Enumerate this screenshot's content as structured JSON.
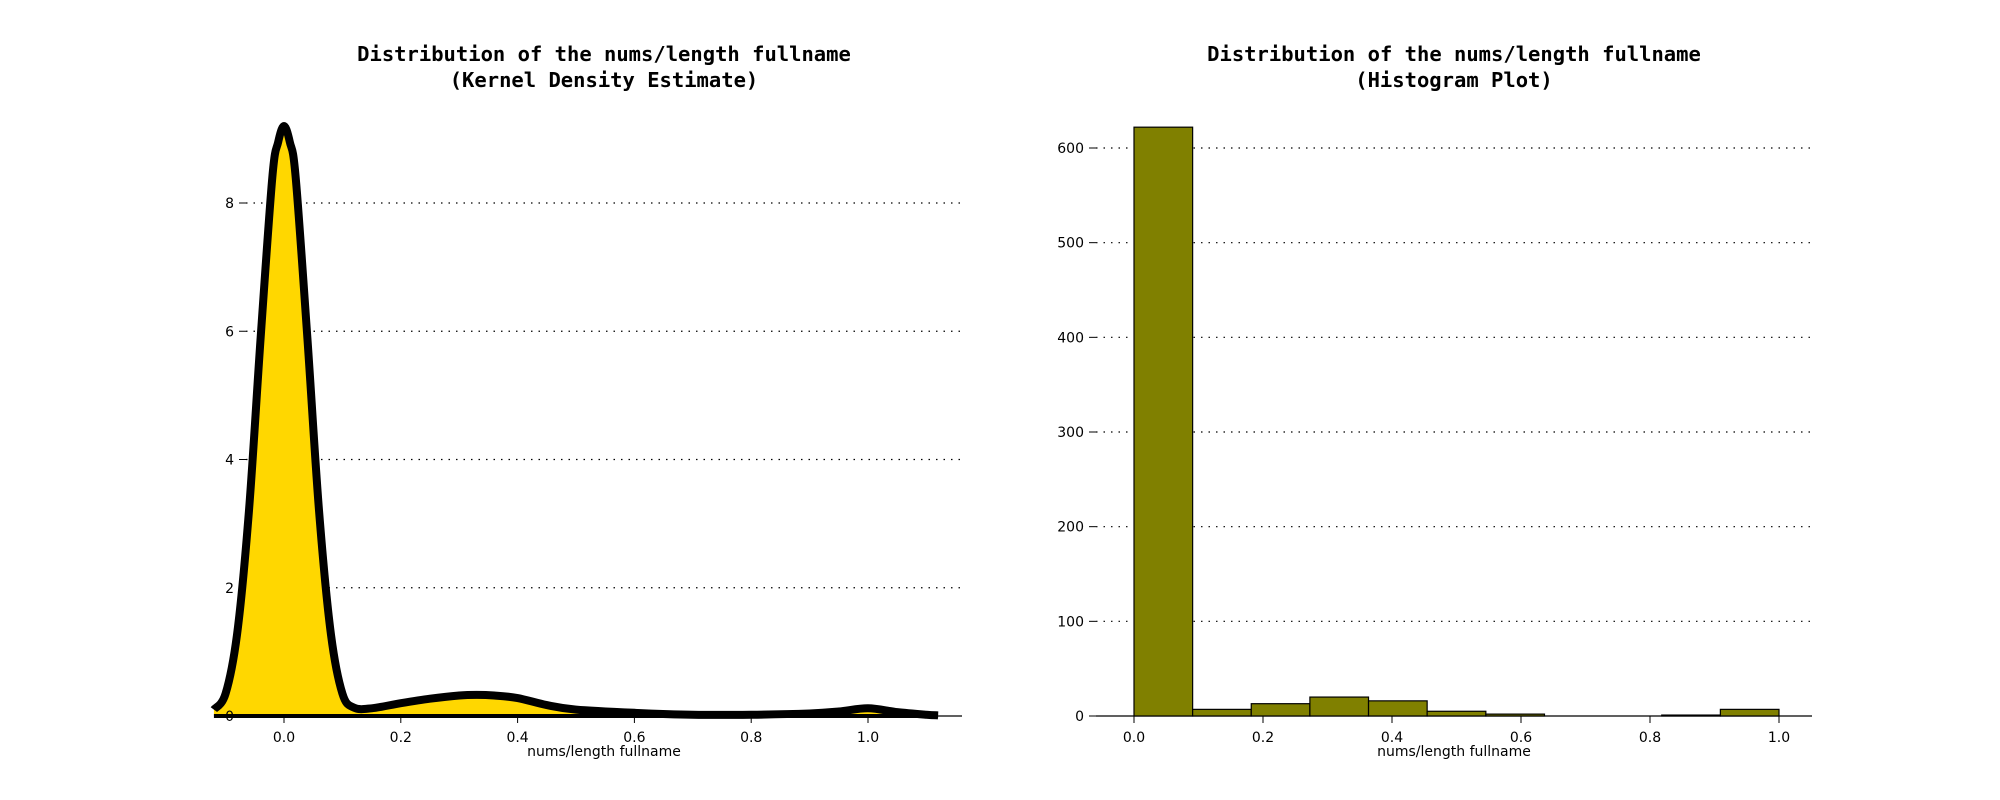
{
  "chart_data": [
    {
      "type": "area",
      "title": "Distribution of the nums/length fullname\n(Kernel Density Estimate)",
      "xlabel": "nums/length fullname",
      "ylabel": "",
      "xlim": [
        -0.18,
        1.18
      ],
      "ylim": [
        0,
        9.4
      ],
      "xticks": [
        0.0,
        0.2,
        0.4,
        0.6,
        0.8,
        1.0
      ],
      "yticks": [
        0,
        2,
        4,
        6,
        8
      ],
      "grid": "y-dotted",
      "fill_color": "#FFD700",
      "line_color": "#000000",
      "x": [
        -0.12,
        -0.1,
        -0.08,
        -0.06,
        -0.04,
        -0.02,
        -0.01,
        0.0,
        0.01,
        0.02,
        0.04,
        0.06,
        0.08,
        0.1,
        0.12,
        0.15,
        0.2,
        0.25,
        0.3,
        0.33,
        0.36,
        0.4,
        0.45,
        0.5,
        0.6,
        0.7,
        0.8,
        0.9,
        0.95,
        1.0,
        1.05,
        1.1,
        1.12
      ],
      "y": [
        0.1,
        0.35,
        1.3,
        3.2,
        5.9,
        8.4,
        8.95,
        9.2,
        8.95,
        8.4,
        5.9,
        3.2,
        1.3,
        0.35,
        0.13,
        0.12,
        0.2,
        0.27,
        0.32,
        0.33,
        0.32,
        0.28,
        0.17,
        0.1,
        0.05,
        0.02,
        0.02,
        0.04,
        0.07,
        0.12,
        0.06,
        0.02,
        0.01
      ]
    },
    {
      "type": "bar",
      "title": "Distribution of the nums/length fullname\n(Histogram Plot)",
      "xlabel": "nums/length fullname",
      "ylabel": "",
      "xlim": [
        -0.05,
        1.05
      ],
      "ylim": [
        0,
        650
      ],
      "xticks": [
        0.0,
        0.2,
        0.4,
        0.6,
        0.8,
        1.0
      ],
      "yticks": [
        0,
        100,
        200,
        300,
        400,
        500,
        600
      ],
      "grid": "y-dotted",
      "bar_color": "#808000",
      "edge_color": "#000000",
      "bin_edges": [
        0.0,
        0.0909,
        0.1818,
        0.2727,
        0.3636,
        0.4545,
        0.5455,
        0.6364,
        0.7273,
        0.8182,
        0.9091,
        1.0
      ],
      "values": [
        622,
        7,
        13,
        20,
        16,
        5,
        2,
        0,
        0,
        1,
        7
      ]
    }
  ]
}
